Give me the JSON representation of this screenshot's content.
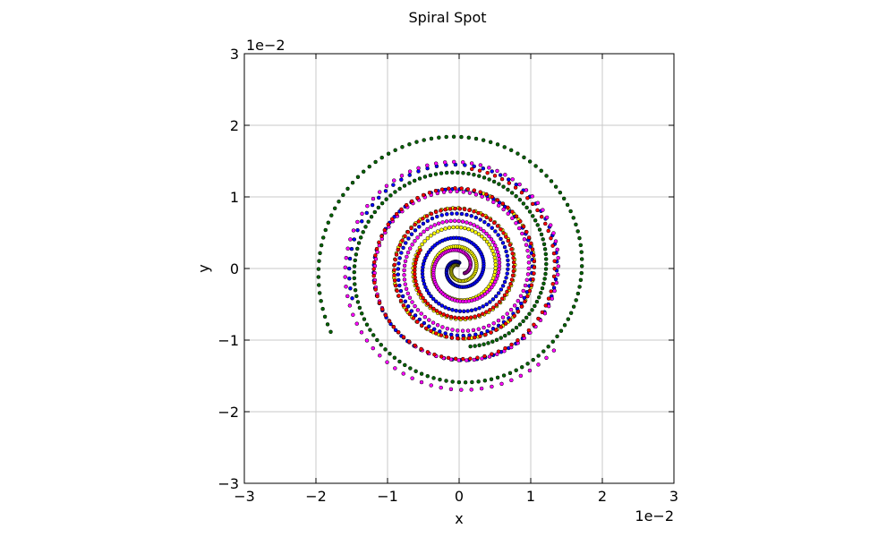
{
  "chart_data": {
    "type": "scatter",
    "title": "Spiral Spot",
    "xlabel": "x",
    "ylabel": "y",
    "xlim": [
      -0.03,
      0.03
    ],
    "ylim": [
      -0.03,
      0.03
    ],
    "x_ticks": [
      -0.03,
      -0.02,
      -0.01,
      0,
      0.01,
      0.02,
      0.03
    ],
    "y_ticks": [
      -0.03,
      -0.02,
      -0.01,
      0,
      0.01,
      0.02,
      0.03
    ],
    "x_tick_labels": [
      "−3",
      "−2",
      "−1",
      "0",
      "1",
      "2",
      "3"
    ],
    "y_tick_labels": [
      "−3",
      "−2",
      "−1",
      "0",
      "1",
      "2",
      "3"
    ],
    "x_offset_label": "1e−2",
    "y_offset_label": "1e−2",
    "grid": true,
    "series": [
      {
        "color": "#ffff00",
        "r_start": 0.0005,
        "r_end": 0.011,
        "turns_start": 0.3,
        "turns_end": 4.2,
        "count": 260
      },
      {
        "color": "#0000ff",
        "r_start": 0.0008,
        "r_end": 0.0155,
        "turns_start": 0.1,
        "turns_end": 4.4,
        "count": 300
      },
      {
        "color": "#ff00ff",
        "r_start": 0.001,
        "r_end": 0.0175,
        "turns_start": 0.6,
        "turns_end": 4.6,
        "count": 300
      },
      {
        "color": "#ff0000",
        "r_start": 0.006,
        "r_end": 0.014,
        "turns_start": 2.0,
        "turns_end": 4.8,
        "count": 220
      },
      {
        "color": "#006400",
        "r_start": 0.011,
        "r_end": 0.02,
        "turns_start": 3.2,
        "turns_end": 5.0,
        "count": 200
      }
    ]
  }
}
